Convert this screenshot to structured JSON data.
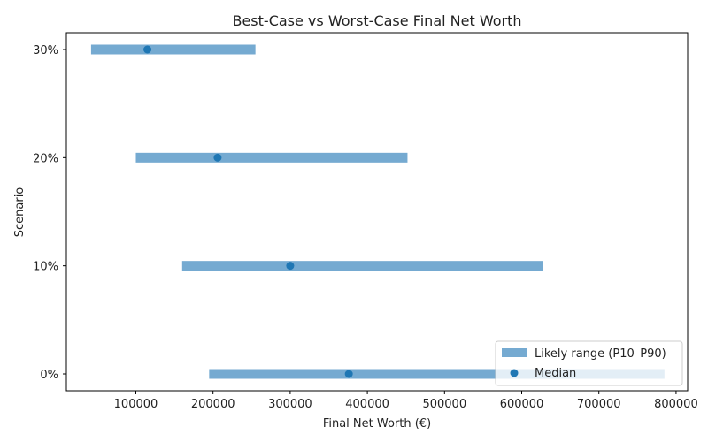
{
  "chart_data": {
    "type": "range",
    "title": "Best-Case vs Worst-Case Final Net Worth",
    "xlabel": "Final Net Worth (€)",
    "ylabel": "Scenario",
    "categories": [
      "0%",
      "10%",
      "20%",
      "30%"
    ],
    "series": [
      {
        "name": "Likely range (P10–P90)",
        "low": [
          195000,
          160000,
          100000,
          42000
        ],
        "high": [
          785000,
          628000,
          452000,
          255000
        ],
        "color": "#75aad1"
      },
      {
        "name": "Median",
        "values": [
          376000,
          300000,
          206000,
          115000
        ],
        "color": "#1f77b4"
      }
    ],
    "x_ticks": [
      "100000",
      "200000",
      "300000",
      "400000",
      "500000",
      "600000",
      "700000",
      "800000"
    ],
    "xlim": [
      10000,
      815000
    ],
    "legend": "lower-right",
    "grid": false
  }
}
